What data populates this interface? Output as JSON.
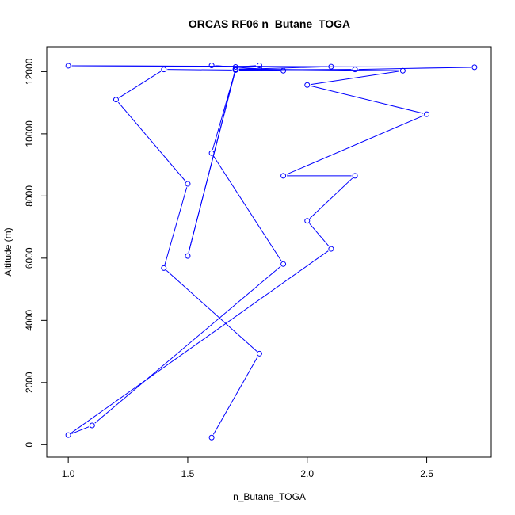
{
  "chart_data": {
    "type": "line",
    "title": "ORCAS RF06 n_Butane_TOGA",
    "xlabel": "n_Butane_TOGA",
    "ylabel": "Altitude (m)",
    "xlim": [
      0.91,
      2.77
    ],
    "ylim": [
      -400,
      12800
    ],
    "x_ticks": [
      1.0,
      1.5,
      2.0,
      2.5
    ],
    "x_tick_labels": [
      "1.0",
      "1.5",
      "2.0",
      "2.5"
    ],
    "y_ticks": [
      0,
      2000,
      4000,
      6000,
      8000,
      10000,
      12000
    ],
    "y_tick_labels": [
      "0",
      "2000",
      "4000",
      "6000",
      "8000",
      "10000",
      "12000"
    ],
    "grid": false,
    "marker": "open-circle",
    "series": [
      {
        "color": "#0000ff",
        "x": [
          1.6,
          1.8,
          1.4,
          1.5,
          1.2,
          1.4,
          1.7,
          1.5,
          1.7,
          1.7,
          1.9,
          1.6,
          1.7,
          1.8,
          1.8,
          1.7,
          2.4,
          2.0,
          2.5,
          1.9,
          2.2,
          2.0,
          2.1,
          1.0,
          1.1,
          1.9,
          1.6,
          1.7,
          2.2,
          2.7,
          1.0,
          2.1,
          1.7
        ],
        "y": [
          230,
          2930,
          5680,
          8390,
          11100,
          12070,
          12050,
          6070,
          12090,
          12050,
          12030,
          12200,
          12150,
          12200,
          12100,
          12080,
          12030,
          11570,
          10630,
          8650,
          8650,
          7200,
          6300,
          310,
          620,
          5810,
          9380,
          12060,
          12070,
          12140,
          12190,
          12160,
          12070
        ]
      }
    ]
  }
}
